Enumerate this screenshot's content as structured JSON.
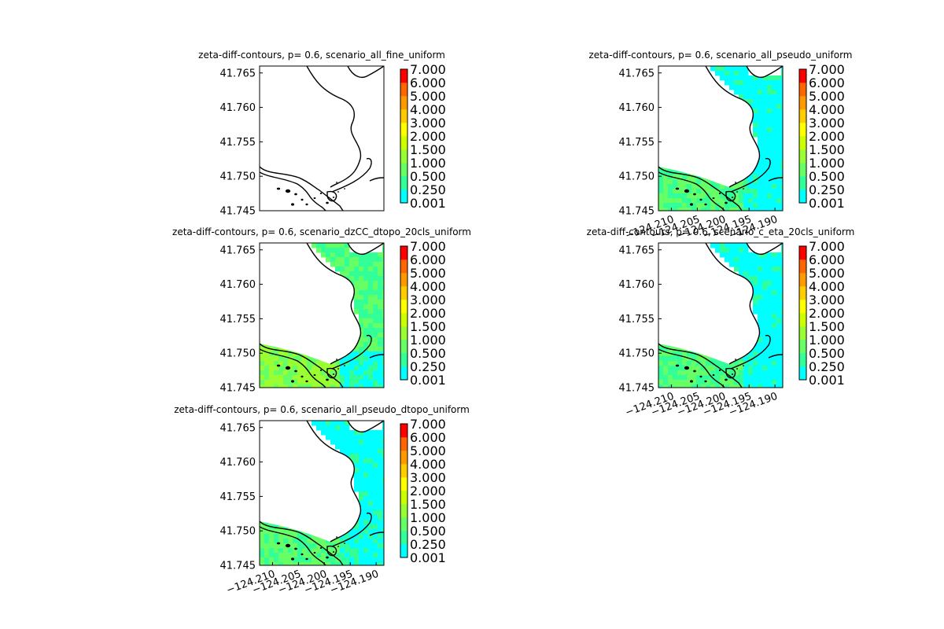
{
  "figure": {
    "background": "#ffffff"
  },
  "colorbar": {
    "levels": [
      "0.001",
      "0.250",
      "0.500",
      "1.000",
      "1.500",
      "2.000",
      "3.000",
      "4.000",
      "5.000",
      "6.000",
      "7.000"
    ],
    "colors": [
      "#00ffff",
      "#33ff99",
      "#66ff66",
      "#99ff33",
      "#ccff00",
      "#ffff00",
      "#ffcc00",
      "#ff9900",
      "#ff6600",
      "#ff0000"
    ]
  },
  "chart_data": [
    {
      "type": "heatmap",
      "title": "zeta-diff-contours, p= 0.6, scenario_all_fine_uniform",
      "ylim": [
        41.745,
        41.766
      ],
      "xlim": [
        -124.2125,
        -124.1885
      ],
      "yticks": [
        "41.765",
        "41.760",
        "41.755",
        "41.750",
        "41.745"
      ],
      "xticks": [],
      "fill": "none",
      "value_range": [
        0,
        0
      ]
    },
    {
      "type": "heatmap",
      "title": "zeta-diff-contours, p= 0.6, scenario_all_pseudo_uniform",
      "ylim": [
        41.745,
        41.766
      ],
      "xlim": [
        -124.2125,
        -124.1885
      ],
      "yticks": [
        "41.765",
        "41.760",
        "41.755",
        "41.750",
        "41.745"
      ],
      "xticks": [
        "−124.210",
        "−124.205",
        "−124.200",
        "−124.195",
        "−124.190"
      ],
      "fill": "cyan-dominant",
      "value_range": [
        0.001,
        1.0
      ]
    },
    {
      "type": "heatmap",
      "title": "zeta-diff-contours, p= 0.6, scenario_dzCC_dtopo_20cls_uniform",
      "ylim": [
        41.745,
        41.766
      ],
      "xlim": [
        -124.2125,
        -124.1885
      ],
      "yticks": [
        "41.765",
        "41.760",
        "41.755",
        "41.750",
        "41.745"
      ],
      "xticks": [],
      "fill": "green-dominant",
      "value_range": [
        0.25,
        1.5
      ]
    },
    {
      "type": "heatmap",
      "title": "zeta-diff-contours, p= 0.6, scenario_c_eta_20cls_uniform",
      "ylim": [
        41.745,
        41.766
      ],
      "xlim": [
        -124.2125,
        -124.1885
      ],
      "yticks": [
        "41.765",
        "41.760",
        "41.755",
        "41.750",
        "41.745"
      ],
      "xticks": [
        "−124.210",
        "−124.205",
        "−124.200",
        "−124.195",
        "−124.190"
      ],
      "fill": "cyan-dominant",
      "value_range": [
        0.001,
        1.0
      ]
    },
    {
      "type": "heatmap",
      "title": "zeta-diff-contours, p= 0.6, scenario_all_pseudo_dtopo_uniform",
      "ylim": [
        41.745,
        41.766
      ],
      "xlim": [
        -124.2125,
        -124.1885
      ],
      "yticks": [
        "41.765",
        "41.760",
        "41.755",
        "41.750",
        "41.745"
      ],
      "xticks": [
        "−124.210",
        "−124.205",
        "−124.200",
        "−124.195",
        "−124.190"
      ],
      "fill": "mixed",
      "value_range": [
        0.001,
        1.0
      ]
    }
  ]
}
